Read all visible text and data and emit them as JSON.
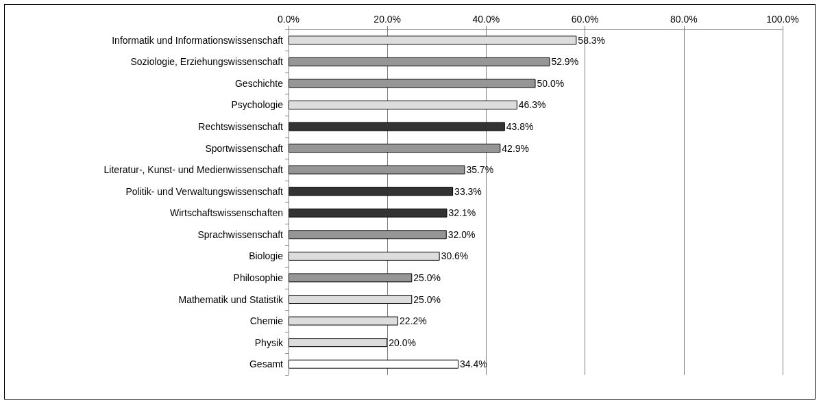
{
  "chart_data": {
    "type": "bar",
    "orientation": "horizontal",
    "categories": [
      "Informatik und Informationswissenschaft",
      "Soziologie, Erziehungswissenschaft",
      "Geschichte",
      "Psychologie",
      "Rechtswissenschaft",
      "Sportwissenschaft",
      "Literatur-, Kunst- und Medienwissenschaft",
      "Politik- und Verwaltungswissenschaft",
      "Wirtschaftswissenschaften",
      "Sprachwissenschaft",
      "Biologie",
      "Philosophie",
      "Mathematik und Statistik",
      "Chemie",
      "Physik",
      "Gesamt"
    ],
    "values": [
      58.3,
      52.9,
      50.0,
      46.3,
      43.8,
      42.9,
      35.7,
      33.3,
      32.1,
      32.0,
      30.6,
      25.0,
      25.0,
      22.2,
      20.0,
      34.4
    ],
    "colors": [
      "#dddddd",
      "#969696",
      "#969696",
      "#dddddd",
      "#333333",
      "#969696",
      "#969696",
      "#333333",
      "#333333",
      "#969696",
      "#dddddd",
      "#969696",
      "#dddddd",
      "#dddddd",
      "#dddddd",
      "#ffffff"
    ],
    "value_labels": [
      "58.3%",
      "52.9%",
      "50.0%",
      "46.3%",
      "43.8%",
      "42.9%",
      "35.7%",
      "33.3%",
      "32.1%",
      "32.0%",
      "30.6%",
      "25.0%",
      "25.0%",
      "22.2%",
      "20.0%",
      "34.4%"
    ],
    "xlim": [
      0,
      100
    ],
    "xticks": [
      {
        "value": 0,
        "label": "0.0%"
      },
      {
        "value": 20,
        "label": "20.0%"
      },
      {
        "value": 40,
        "label": "40.0%"
      },
      {
        "value": 60,
        "label": "60.0%"
      },
      {
        "value": 80,
        "label": "80.0%"
      },
      {
        "value": 100,
        "label": "100.0%"
      }
    ],
    "grid": "x"
  }
}
